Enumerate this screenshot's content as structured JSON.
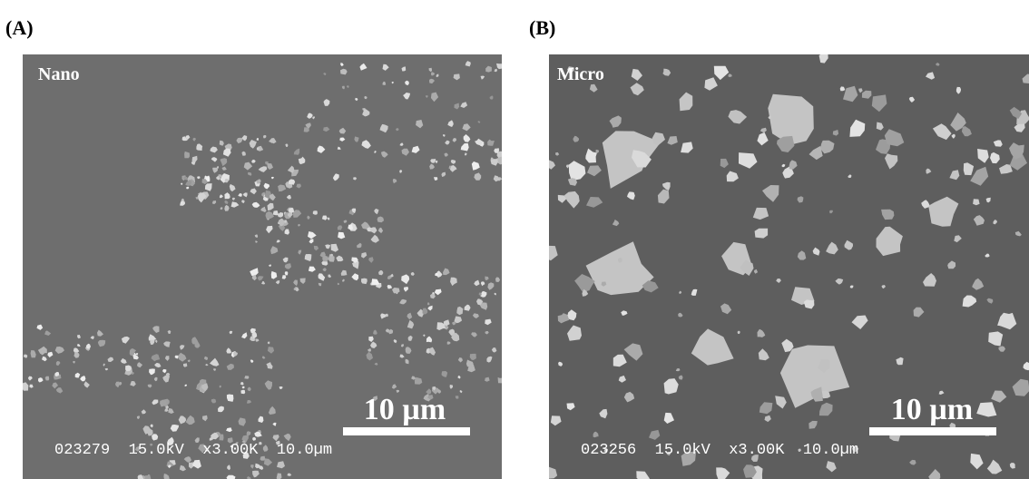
{
  "panels": [
    {
      "label": "(A)",
      "title": "Nano",
      "scale_bar": "10 µm",
      "info": "023279  15.0kV  x3.00K  10.0µm"
    },
    {
      "label": "(B)",
      "title": "Micro",
      "scale_bar": "10 µm",
      "info": "023256  15.0kV  x3.00K  10.0µm"
    }
  ]
}
